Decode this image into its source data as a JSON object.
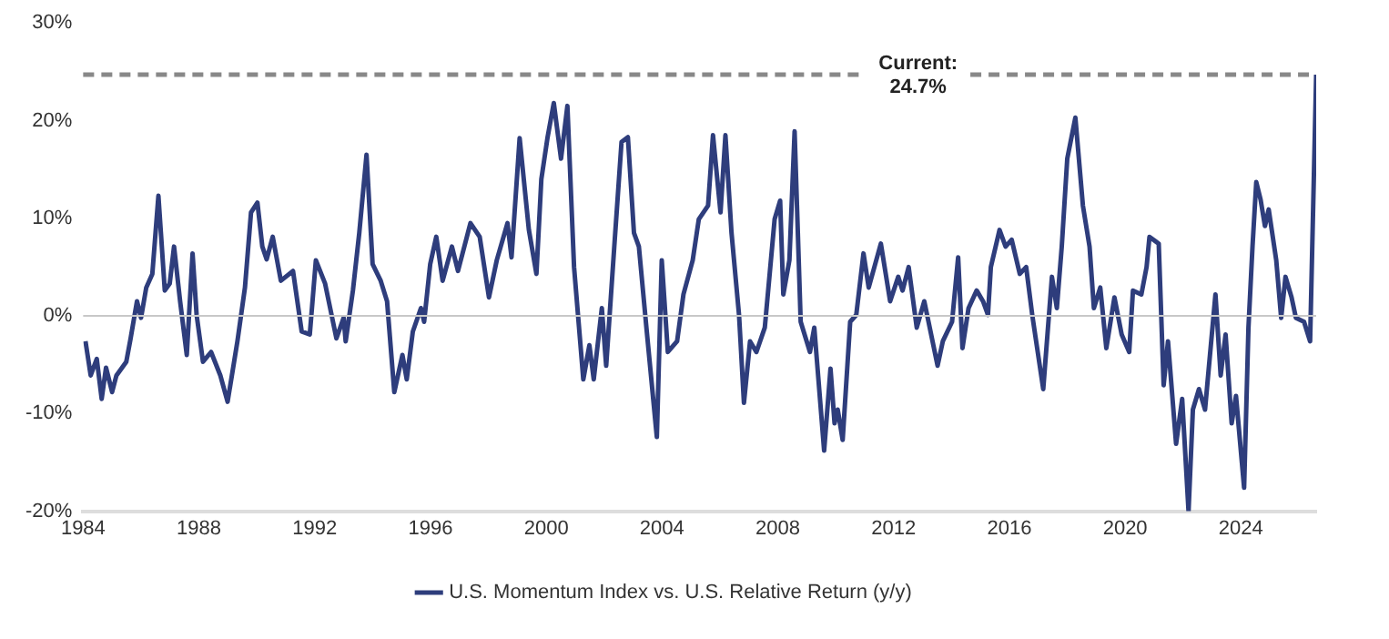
{
  "chart_data": {
    "type": "line",
    "x": [
      1984.08,
      1984.26,
      1984.47,
      1984.64,
      1984.79,
      1985.0,
      1985.15,
      1985.49,
      1985.64,
      1985.86,
      1986.0,
      1986.18,
      1986.39,
      1986.6,
      1986.82,
      1986.99,
      1987.14,
      1987.35,
      1987.58,
      1987.78,
      1987.92,
      1988.14,
      1988.42,
      1988.74,
      1988.99,
      1989.33,
      1989.59,
      1989.8,
      1990.02,
      1990.19,
      1990.34,
      1990.55,
      1990.83,
      1991.25,
      1991.55,
      1991.83,
      1992.04,
      1992.36,
      1992.75,
      1993.0,
      1993.07,
      1993.32,
      1993.54,
      1993.79,
      1994.0,
      1994.28,
      1994.5,
      1994.75,
      1995.03,
      1995.18,
      1995.39,
      1995.67,
      1995.78,
      1995.99,
      1996.2,
      1996.42,
      1996.74,
      1996.95,
      1997.38,
      1997.7,
      1998.02,
      1998.29,
      1998.66,
      1998.8,
      1999.08,
      1999.4,
      1999.66,
      1999.83,
      2000.04,
      2000.26,
      2000.51,
      2000.73,
      2000.96,
      2001.28,
      2001.49,
      2001.64,
      2001.92,
      2002.07,
      2002.35,
      2002.6,
      2002.82,
      2003.03,
      2003.2,
      2003.46,
      2003.82,
      2003.99,
      2004.2,
      2004.52,
      2004.74,
      2005.06,
      2005.27,
      2005.59,
      2005.76,
      2006.02,
      2006.19,
      2006.4,
      2006.66,
      2006.83,
      2007.04,
      2007.26,
      2007.55,
      2007.89,
      2008.08,
      2008.19,
      2008.4,
      2008.58,
      2008.79,
      2009.11,
      2009.26,
      2009.6,
      2009.82,
      2009.96,
      2010.07,
      2010.24,
      2010.5,
      2010.71,
      2010.96,
      2011.14,
      2011.56,
      2011.88,
      2012.16,
      2012.31,
      2012.52,
      2012.8,
      2013.06,
      2013.52,
      2013.7,
      2014.02,
      2014.23,
      2014.38,
      2014.59,
      2014.87,
      2015.09,
      2015.26,
      2015.36,
      2015.66,
      2015.87,
      2016.08,
      2016.36,
      2016.58,
      2016.79,
      2017.17,
      2017.47,
      2017.64,
      2017.81,
      2018.0,
      2018.28,
      2018.54,
      2018.77,
      2018.92,
      2019.14,
      2019.35,
      2019.63,
      2019.88,
      2020.14,
      2020.27,
      2020.56,
      2020.74,
      2020.84,
      2021.16,
      2021.33,
      2021.48,
      2021.76,
      2021.97,
      2022.19,
      2022.34,
      2022.55,
      2022.76,
      2023.12,
      2023.3,
      2023.47,
      2023.68,
      2023.83,
      2024.11,
      2024.26,
      2024.4,
      2024.53,
      2024.68,
      2024.83,
      2024.96,
      2025.22,
      2025.39,
      2025.54,
      2025.75,
      2025.9,
      2026.18,
      2026.39,
      2026.6
    ],
    "series": [
      {
        "name": "U.S. Momentum Index vs. U.S. Relative Return (y/y)",
        "color": "#2e3d7c",
        "values": [
          -2.6,
          -6.1,
          -4.4,
          -8.5,
          -5.3,
          -7.8,
          -6.1,
          -4.7,
          -2.3,
          1.5,
          -0.2,
          2.9,
          4.3,
          12.3,
          2.6,
          3.3,
          7.1,
          1.5,
          -4.0,
          6.4,
          0.1,
          -4.7,
          -3.7,
          -6.1,
          -8.8,
          -2.6,
          2.9,
          10.6,
          11.6,
          7.1,
          5.8,
          8.1,
          3.6,
          4.6,
          -1.6,
          -1.9,
          5.7,
          3.3,
          -2.3,
          -0.2,
          -2.6,
          2.6,
          8.5,
          16.5,
          5.3,
          3.6,
          1.5,
          -7.8,
          -4.0,
          -6.5,
          -1.6,
          0.8,
          -0.6,
          5.3,
          8.1,
          3.6,
          7.1,
          4.6,
          9.5,
          8.1,
          1.9,
          5.7,
          9.5,
          6.0,
          18.2,
          8.8,
          4.3,
          14.0,
          18.2,
          21.8,
          16.1,
          21.5,
          5.0,
          -6.5,
          -3.0,
          -6.5,
          0.8,
          -5.1,
          7.1,
          17.8,
          18.3,
          8.5,
          7.1,
          -1.2,
          -12.4,
          5.7,
          -3.7,
          -2.6,
          2.2,
          5.7,
          9.9,
          11.3,
          18.5,
          10.6,
          18.5,
          8.5,
          0.1,
          -8.9,
          -2.6,
          -3.7,
          -1.2,
          9.9,
          11.8,
          2.2,
          5.7,
          18.9,
          -0.6,
          -3.7,
          -1.2,
          -13.8,
          -5.4,
          -11.0,
          -9.6,
          -12.7,
          -0.6,
          0.1,
          6.4,
          2.9,
          7.4,
          1.5,
          4.0,
          2.6,
          5.0,
          -1.2,
          1.5,
          -5.1,
          -2.6,
          -0.6,
          6.0,
          -3.3,
          0.8,
          2.6,
          1.5,
          0.1,
          5.0,
          8.8,
          7.1,
          7.8,
          4.3,
          5.0,
          0.1,
          -7.5,
          4.0,
          0.8,
          7.1,
          16.1,
          20.3,
          11.3,
          7.1,
          0.8,
          2.9,
          -3.3,
          1.9,
          -1.9,
          -3.7,
          2.6,
          2.2,
          5.0,
          8.1,
          7.4,
          -7.1,
          -2.6,
          -13.1,
          -8.5,
          -20.0,
          -9.6,
          -7.5,
          -9.6,
          2.2,
          -6.1,
          -1.9,
          -11.0,
          -8.2,
          -17.6,
          -1.2,
          7.1,
          13.7,
          11.9,
          9.2,
          10.9,
          5.7,
          -0.2,
          4.0,
          1.9,
          -0.2,
          -0.6,
          -2.6,
          24.7
        ]
      }
    ],
    "xlim": [
      1984,
      2026.6
    ],
    "xticks": [
      1984,
      1988,
      1992,
      1996,
      2000,
      2004,
      2008,
      2012,
      2016,
      2020,
      2024
    ],
    "ylim": [
      -20,
      30
    ],
    "yticks": [
      {
        "value": -20,
        "label": "-20%"
      },
      {
        "value": -10,
        "label": "-10%"
      },
      {
        "value": 0,
        "label": "0%"
      },
      {
        "value": 10,
        "label": "10%"
      },
      {
        "value": 20,
        "label": "20%"
      },
      {
        "value": 30,
        "label": "30%"
      }
    ],
    "ref_lines": [
      {
        "axis": "y",
        "value": 0,
        "label": null,
        "color": "#c8c8c8",
        "line_style": "solid"
      },
      {
        "axis": "y",
        "value": 24.7,
        "label": "Current: 24.7%",
        "color": "#888888",
        "line_style": "dashed"
      }
    ],
    "grid": false,
    "legend": "bottom",
    "marker": "none",
    "line_style": "solid"
  }
}
